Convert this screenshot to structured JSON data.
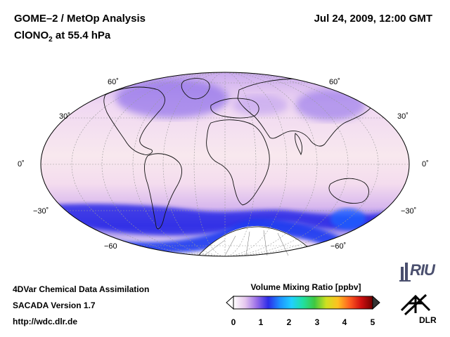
{
  "header": {
    "title_line1": "GOME–2 / MetOp Analysis",
    "title_line2_prefix": "ClONO",
    "title_line2_sub": "2",
    "title_line2_suffix": " at 55.4 hPa",
    "date": "Jul 24, 2009, 12:00 GMT"
  },
  "map": {
    "projection": "Mollweide",
    "lat_labels_left": [
      "60˚",
      "30˚",
      "0˚",
      "−30˚",
      "−60"
    ],
    "lat_labels_right": [
      "60˚",
      "30˚",
      "0˚",
      "−30˚",
      "−60˚"
    ]
  },
  "colorbar": {
    "title": "Volume Mixing Ratio [ppbv]",
    "ticks": [
      "0",
      "1",
      "2",
      "3",
      "4",
      "5"
    ],
    "colors": [
      "#ffffff",
      "#e6c8ee",
      "#9a6ee8",
      "#2c2ce8",
      "#1e90ff",
      "#20d0ff",
      "#20e0a0",
      "#40c840",
      "#d0e020",
      "#ffc020",
      "#ff6020",
      "#d01010",
      "#700000"
    ]
  },
  "footer": {
    "line1": "4DVar Chemical Data Assimilation",
    "line2": "SACADA Version 1.7",
    "line3": "http://wdc.dlr.de"
  },
  "logos": {
    "riu_text": "RIU",
    "dlr_text": "DLR"
  }
}
